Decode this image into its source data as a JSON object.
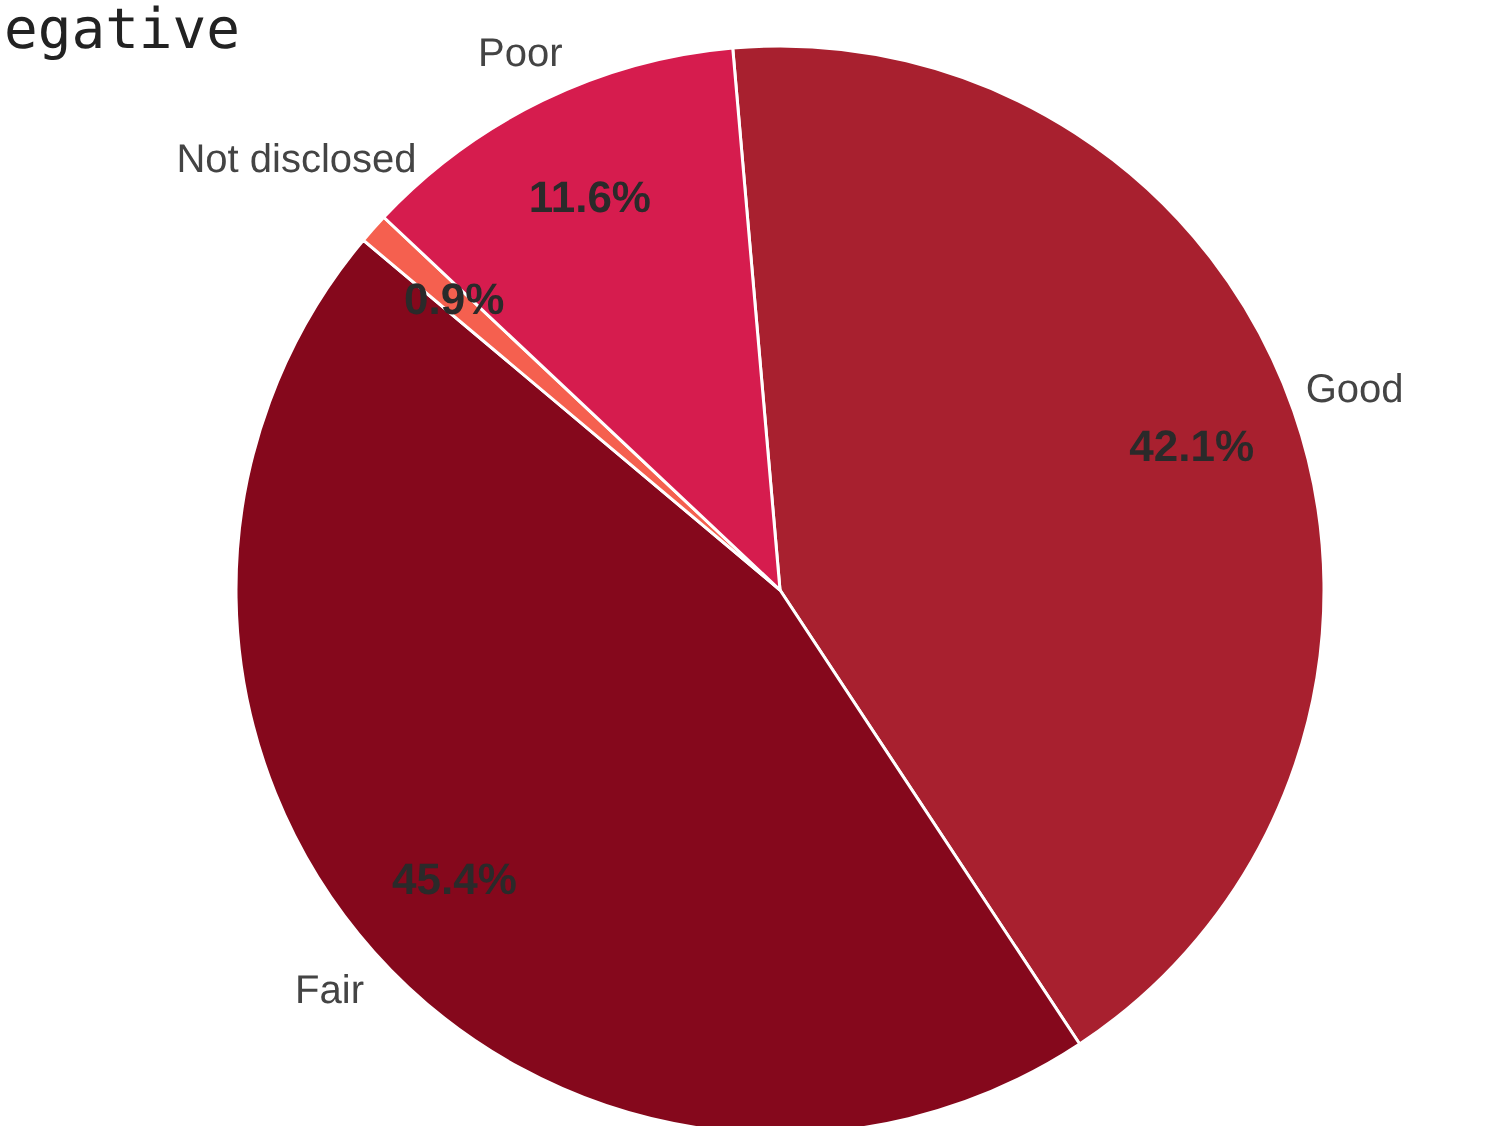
{
  "chart_data": {
    "type": "pie",
    "title": "egative",
    "categories": [
      "Good",
      "Fair",
      "Not disclosed",
      "Poor"
    ],
    "values": [
      42.1,
      45.4,
      0.9,
      11.6
    ],
    "colors": [
      "#a8202f",
      "#85081c",
      "#f5604f",
      "#d61c4e"
    ],
    "value_labels": [
      "42.1%",
      "45.4%",
      "0.9%",
      "11.6%"
    ]
  }
}
